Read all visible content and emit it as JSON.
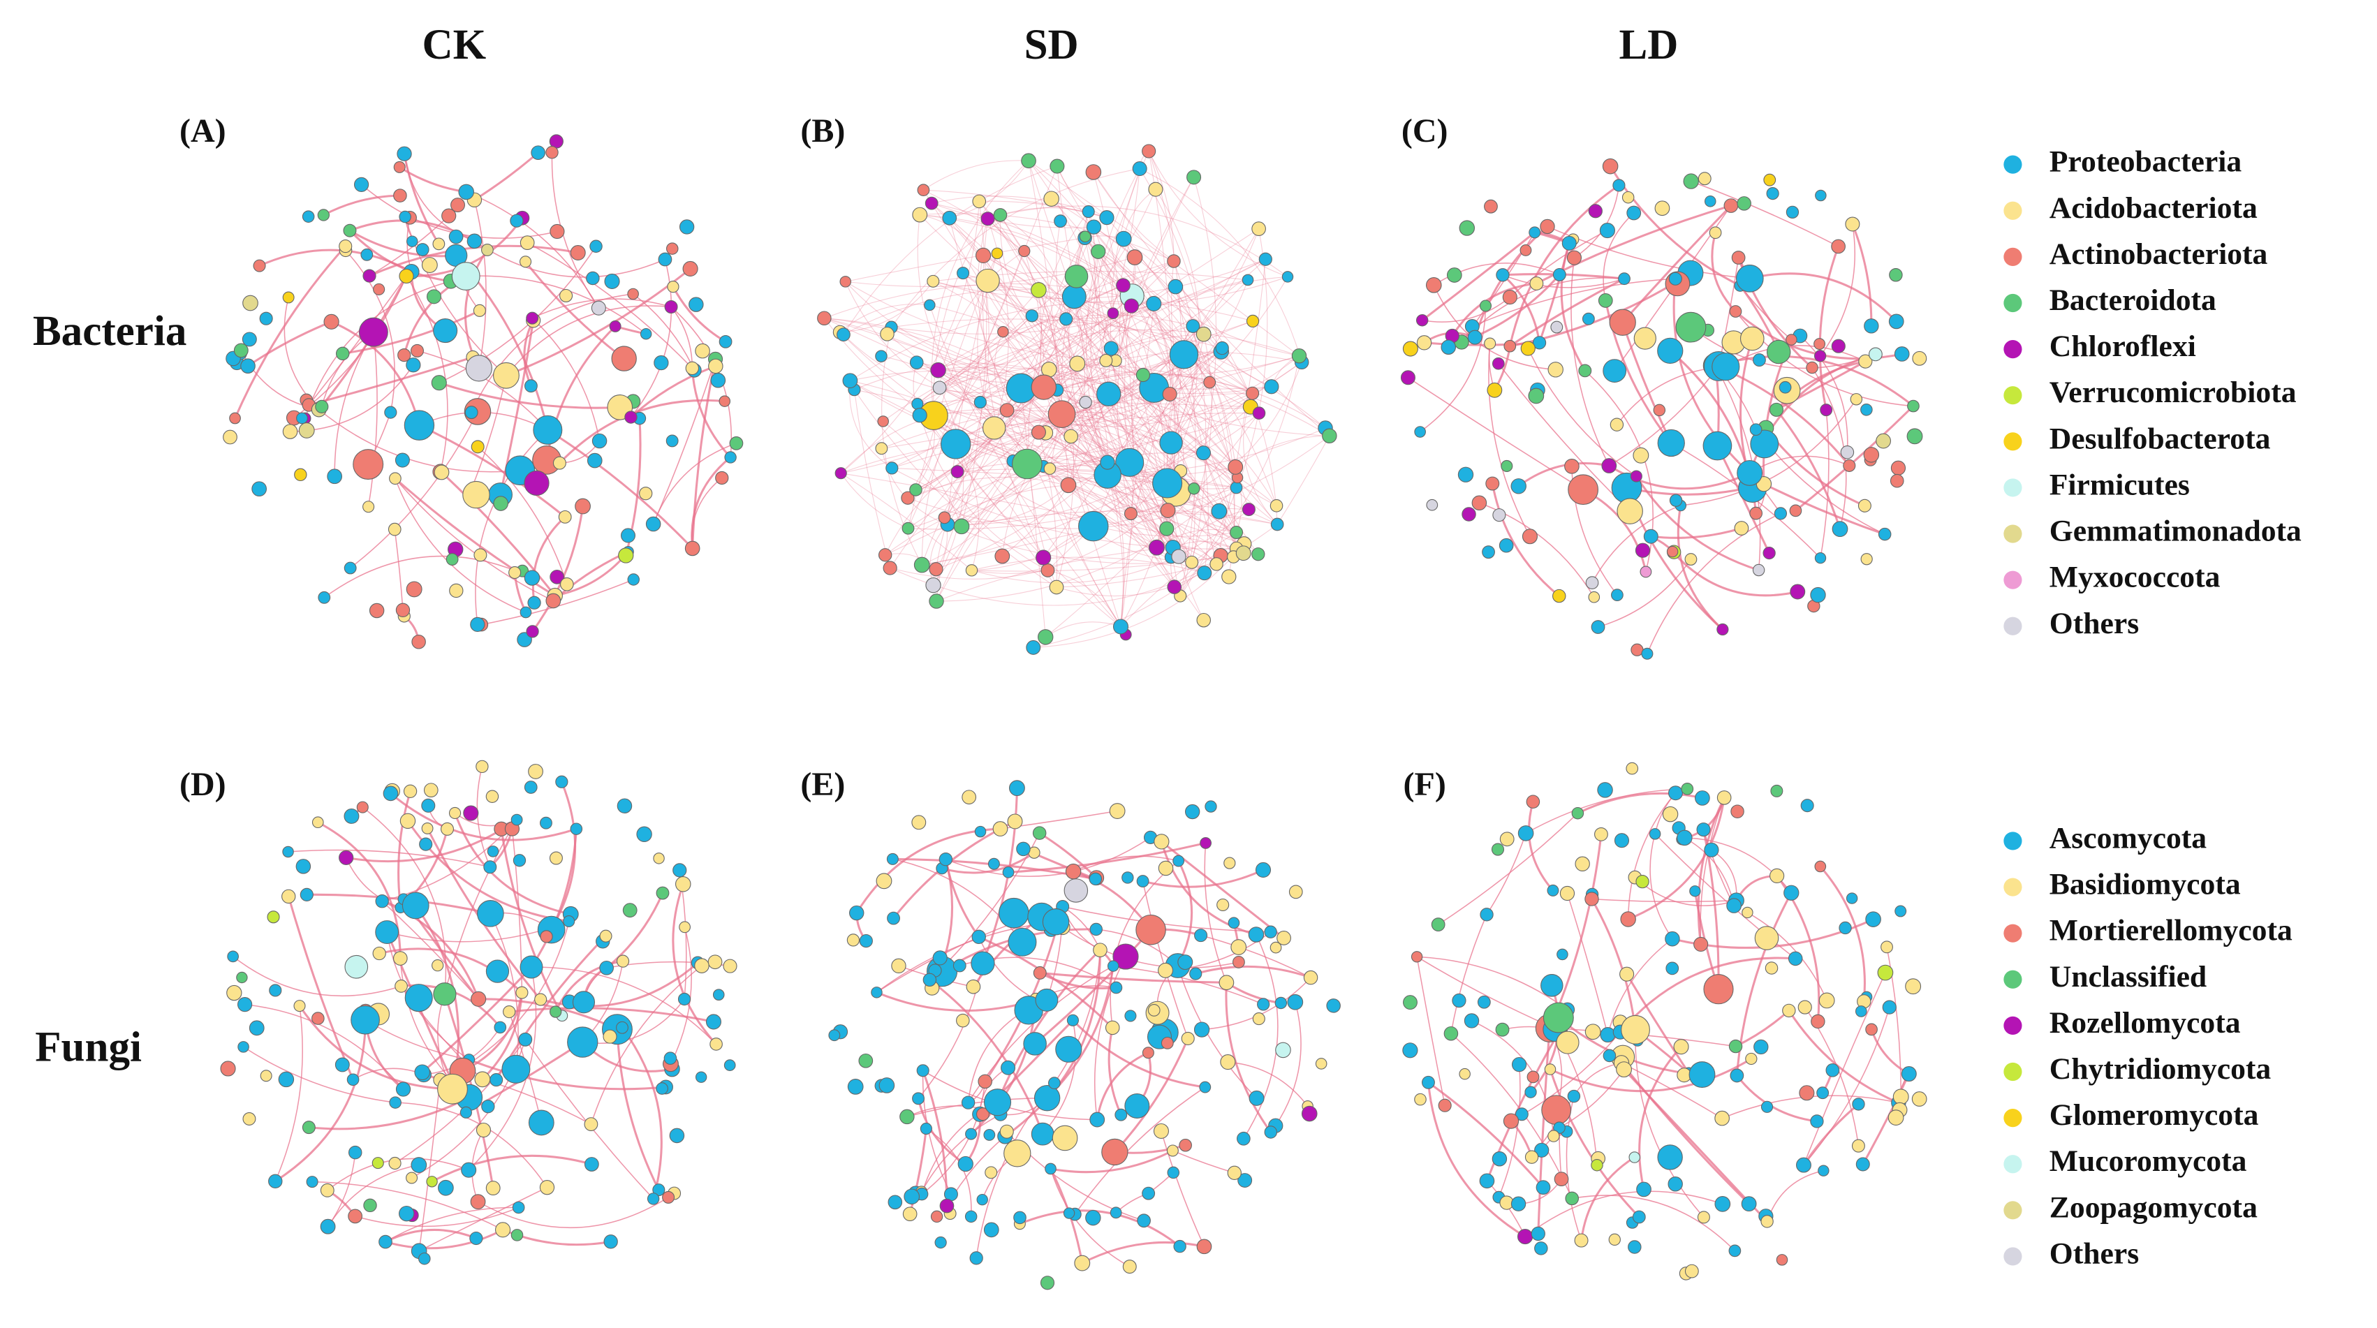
{
  "columns": [
    "CK",
    "SD",
    "LD"
  ],
  "rows": [
    "Bacteria",
    "Fungi"
  ],
  "panels": [
    [
      "(A)",
      "(B)",
      "(C)"
    ],
    [
      "(D)",
      "(E)",
      "(F)"
    ]
  ],
  "legends": [
    {
      "items": [
        {
          "name": "Proteobacteria",
          "color": "#1fb1e0"
        },
        {
          "name": "Acidobacteriota",
          "color": "#fbe38e"
        },
        {
          "name": "Actinobacteriota",
          "color": "#ef7d72"
        },
        {
          "name": "Bacteroidota",
          "color": "#5cc87a"
        },
        {
          "name": "Chloroflexi",
          "color": "#b414b4"
        },
        {
          "name": "Verrucomicrobiota",
          "color": "#c6e83c"
        },
        {
          "name": "Desulfobacterota",
          "color": "#f8d21c"
        },
        {
          "name": "Firmicutes",
          "color": "#c6f4ef"
        },
        {
          "name": "Gemmatimonadota",
          "color": "#e2d98e"
        },
        {
          "name": "Myxococcota",
          "color": "#ee9bd4"
        },
        {
          "name": "Others",
          "color": "#d6d5e0"
        }
      ]
    },
    {
      "items": [
        {
          "name": "Ascomycota",
          "color": "#1fb1e0"
        },
        {
          "name": "Basidiomycota",
          "color": "#fbe38e"
        },
        {
          "name": "Mortierellomycota",
          "color": "#ef7d72"
        },
        {
          "name": "Unclassified",
          "color": "#5cc87a"
        },
        {
          "name": "Rozellomycota",
          "color": "#b414b4"
        },
        {
          "name": "Chytridiomycota",
          "color": "#c6e83c"
        },
        {
          "name": "Glomeromycota",
          "color": "#f8d21c"
        },
        {
          "name": "Mucoromycota",
          "color": "#c6f4ef"
        },
        {
          "name": "Zoopagomycota",
          "color": "#e2d98e"
        },
        {
          "name": "Others",
          "color": "#d6d5e0"
        }
      ]
    }
  ]
}
